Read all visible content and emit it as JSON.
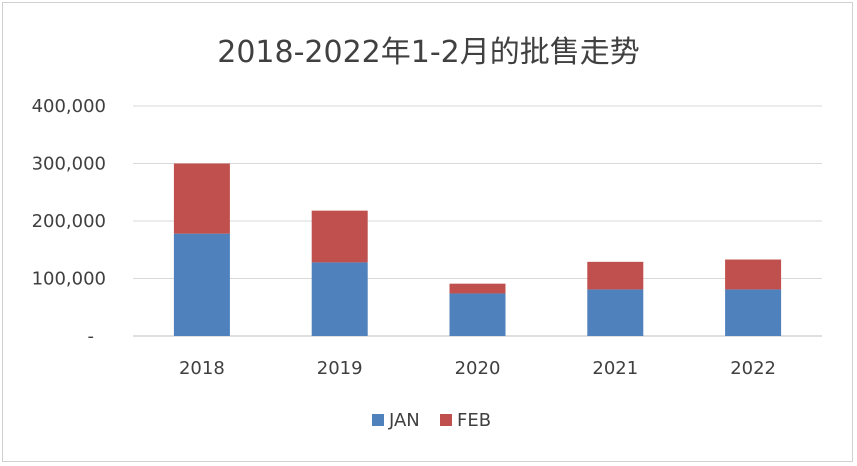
{
  "chart_data": {
    "type": "bar",
    "stacked": true,
    "title": "2018-2022年1-2月的批售走势",
    "categories": [
      "2018",
      "2019",
      "2020",
      "2021",
      "2022"
    ],
    "series": [
      {
        "name": "JAN",
        "values": [
          178000,
          128000,
          74000,
          81000,
          81000
        ],
        "color": "#4f81bd"
      },
      {
        "name": "FEB",
        "values": [
          122000,
          90000,
          17000,
          48000,
          52000
        ],
        "color": "#c0504d"
      }
    ],
    "ylim": [
      0,
      400000
    ],
    "yticks": [
      0,
      100000,
      200000,
      300000,
      400000
    ],
    "ytick_labels": [
      "-",
      "100,000",
      "200,000",
      "300,000",
      "400,000"
    ],
    "grid": true,
    "legend_position": "bottom"
  }
}
